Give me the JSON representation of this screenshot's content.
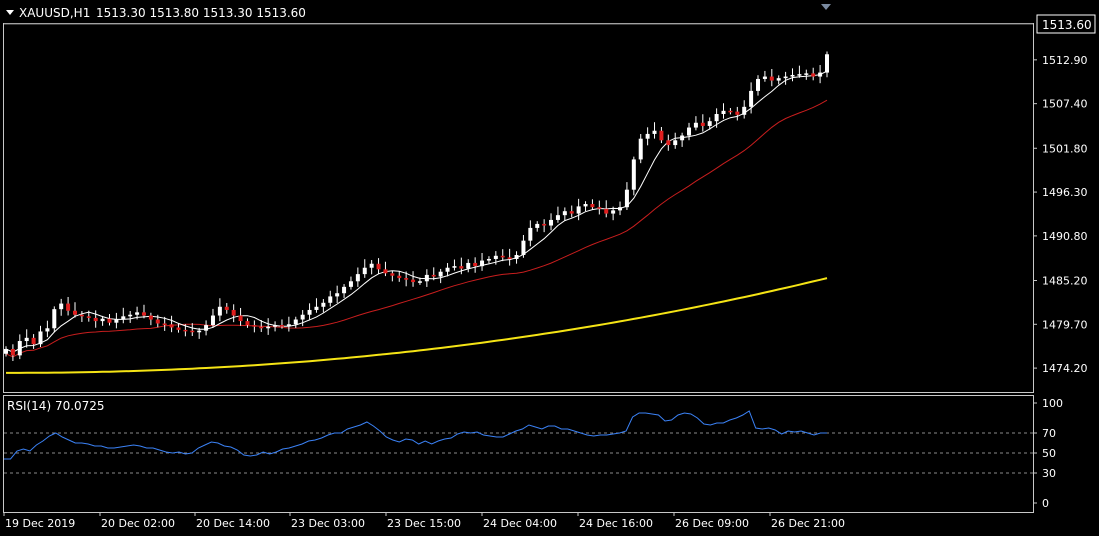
{
  "header": {
    "symbol_label": "XAUUSD,H1",
    "ohlc": "1513.30 1513.80 1513.30 1513.60"
  },
  "price_tag": "1513.60",
  "rsi": {
    "label": "RSI(14) 70.0725",
    "levels": [
      100,
      70,
      50,
      30,
      0
    ],
    "dashed_levels": [
      70,
      50,
      30
    ],
    "values": [
      44,
      44,
      52,
      54,
      52,
      58,
      62,
      67,
      70,
      66,
      63,
      60,
      60,
      59,
      57,
      57,
      55,
      55,
      56,
      57,
      58,
      57,
      55,
      55,
      53,
      51,
      50,
      51,
      49,
      50,
      55,
      58,
      61,
      60,
      57,
      56,
      53,
      48,
      47,
      48,
      51,
      49,
      51,
      54,
      55,
      57,
      59,
      62,
      63,
      65,
      68,
      70,
      70,
      74,
      76,
      78,
      81,
      77,
      72,
      66,
      63,
      61,
      64,
      63,
      59,
      62,
      59,
      62,
      64,
      65,
      69,
      71,
      70,
      71,
      68,
      67,
      66,
      66,
      69,
      72,
      74,
      78,
      76,
      74,
      77,
      77,
      74,
      74,
      72,
      70,
      68,
      67,
      68,
      68,
      69,
      70,
      72,
      86,
      90,
      90,
      89,
      88,
      82,
      83,
      88,
      90,
      89,
      85,
      79,
      78,
      80,
      80,
      83,
      85,
      88,
      92,
      75,
      74,
      75,
      73,
      69,
      72,
      71,
      72,
      70,
      68,
      70,
      70
    ],
    "line_color": "#3b82f6"
  },
  "chart_data": {
    "type": "candlestick",
    "title": "XAUUSD,H1",
    "y_ticks": [
      "1512.90",
      "1507.40",
      "1501.80",
      "1496.30",
      "1490.80",
      "1485.20",
      "1479.70",
      "1474.20"
    ],
    "x_ticks": [
      "19 Dec 2019",
      "20 Dec 02:00",
      "20 Dec 14:00",
      "23 Dec 03:00",
      "23 Dec 15:00",
      "24 Dec 04:00",
      "24 Dec 16:00",
      "26 Dec 09:00",
      "26 Dec 21:00"
    ],
    "ylim": [
      1471.2,
      1517.4
    ],
    "closes": [
      1476.6,
      1475.8,
      1477.6,
      1478.0,
      1477.2,
      1478.8,
      1479.2,
      1481.6,
      1482.3,
      1481.4,
      1480.9,
      1480.7,
      1480.5,
      1480.1,
      1480.4,
      1479.9,
      1480.3,
      1480.7,
      1480.9,
      1481.2,
      1480.8,
      1480.3,
      1479.8,
      1479.7,
      1479.3,
      1479.0,
      1478.9,
      1478.7,
      1478.9,
      1479.6,
      1480.8,
      1481.9,
      1481.5,
      1480.8,
      1480.1,
      1479.6,
      1479.4,
      1479.2,
      1479.4,
      1479.6,
      1479.5,
      1479.7,
      1480.3,
      1480.9,
      1481.5,
      1481.9,
      1482.4,
      1483.2,
      1483.6,
      1484.4,
      1485.1,
      1486.0,
      1486.8,
      1487.3,
      1486.6,
      1486.1,
      1485.8,
      1485.5,
      1485.3,
      1485.0,
      1485.1,
      1485.9,
      1485.7,
      1486.3,
      1486.8,
      1487.0,
      1486.7,
      1487.4,
      1487.0,
      1487.7,
      1487.9,
      1488.3,
      1488.1,
      1487.9,
      1488.4,
      1490.2,
      1491.8,
      1492.3,
      1492.1,
      1492.8,
      1493.4,
      1493.9,
      1493.6,
      1494.5,
      1494.8,
      1494.4,
      1494.2,
      1493.6,
      1494.0,
      1494.4,
      1496.6,
      1500.4,
      1503.0,
      1503.6,
      1504.0,
      1502.8,
      1502.2,
      1502.8,
      1503.4,
      1504.4,
      1505.0,
      1504.6,
      1505.2,
      1506.1,
      1506.5,
      1506.4,
      1506.0,
      1507.0,
      1509.0,
      1510.5,
      1510.8,
      1510.3,
      1510.6,
      1510.8,
      1511.0,
      1511.1,
      1511.2,
      1510.8,
      1511.3,
      1513.6
    ],
    "ma_fast": {
      "name": "",
      "color": "#ffffff"
    },
    "ma_mid": {
      "name": "",
      "color": "#c81e1e"
    },
    "ma_slow": {
      "name": "",
      "color": "#f5e415"
    },
    "bull_color": "#ffffff",
    "bear_color": "#e01e1e",
    "grid": false
  },
  "colors": {
    "background": "#000000",
    "axis": "#c8c8c8",
    "dashed": "#8a8a8a"
  }
}
